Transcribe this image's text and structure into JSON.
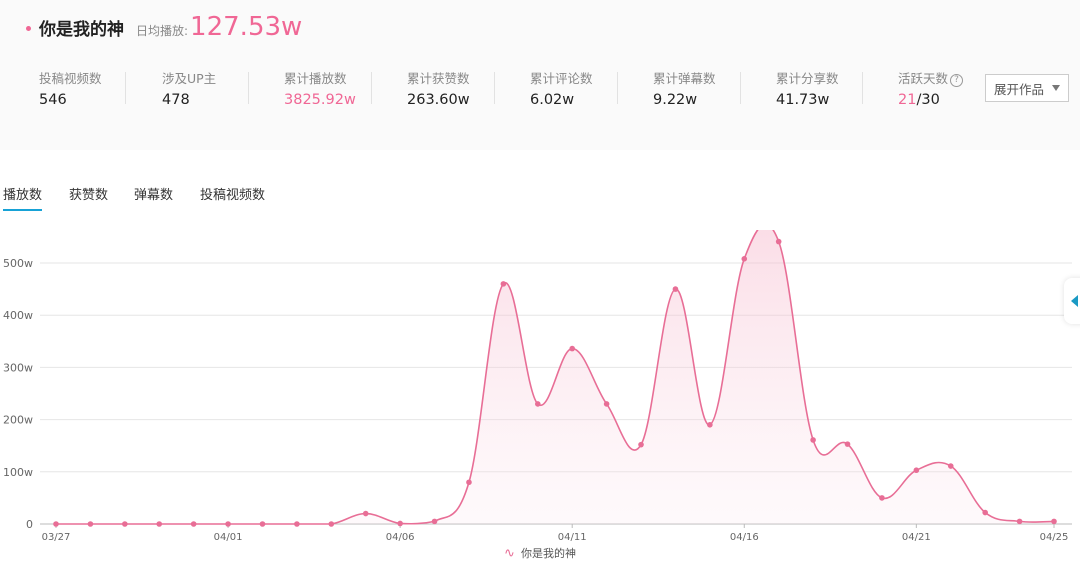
{
  "header": {
    "title": "你是我的神",
    "daily_label": "日均播放:",
    "daily_value": "127.53w"
  },
  "stats": [
    {
      "label": "投稿视频数",
      "value": "546"
    },
    {
      "label": "涉及UP主",
      "value": "478"
    },
    {
      "label": "累计播放数",
      "value": "3825.92w"
    },
    {
      "label": "累计获赞数",
      "value": "263.60w"
    },
    {
      "label": "累计评论数",
      "value": "6.02w"
    },
    {
      "label": "累计弹幕数",
      "value": "9.22w"
    },
    {
      "label": "累计分享数",
      "value": "41.73w"
    }
  ],
  "active_days": {
    "label": "活跃天数",
    "value_highlight": "21",
    "value_rest": "/30",
    "help_icon": "question-circle-icon"
  },
  "expand_button": {
    "label": "展开作品",
    "icon": "caret-down-icon"
  },
  "tabs": [
    "播放数",
    "获赞数",
    "弹幕数",
    "投稿视频数"
  ],
  "colors": {
    "accent": "#f06795",
    "tab_underline": "#17a2d6",
    "line": "#e86e96"
  },
  "chart_data": {
    "type": "area",
    "x": [
      "03/27",
      "03/28",
      "03/29",
      "03/30",
      "03/31",
      "04/01",
      "04/02",
      "04/03",
      "04/04",
      "04/05",
      "04/06",
      "04/07",
      "04/08",
      "04/09",
      "04/10",
      "04/11",
      "04/12",
      "04/13",
      "04/14",
      "04/15",
      "04/16",
      "04/17",
      "04/18",
      "04/19",
      "04/20",
      "04/21",
      "04/22",
      "04/23",
      "04/24",
      "04/25"
    ],
    "x_tick_labels": [
      "03/27",
      "04/01",
      "04/06",
      "04/11",
      "04/16",
      "04/21",
      "04/25"
    ],
    "series": [
      {
        "name": "你是我的神",
        "values": [
          0,
          0,
          0,
          0,
          0,
          0,
          0,
          0,
          0,
          20,
          1,
          5,
          80,
          460,
          230,
          336,
          230,
          152,
          450,
          190,
          508,
          541,
          161,
          153,
          50,
          103,
          111,
          22,
          5,
          5
        ]
      }
    ],
    "y_ticks": [
      "0",
      "100w",
      "200w",
      "300w",
      "400w",
      "500w"
    ],
    "ylim": [
      0,
      560
    ],
    "unit": "w",
    "grid": true,
    "legend": "bottom"
  }
}
